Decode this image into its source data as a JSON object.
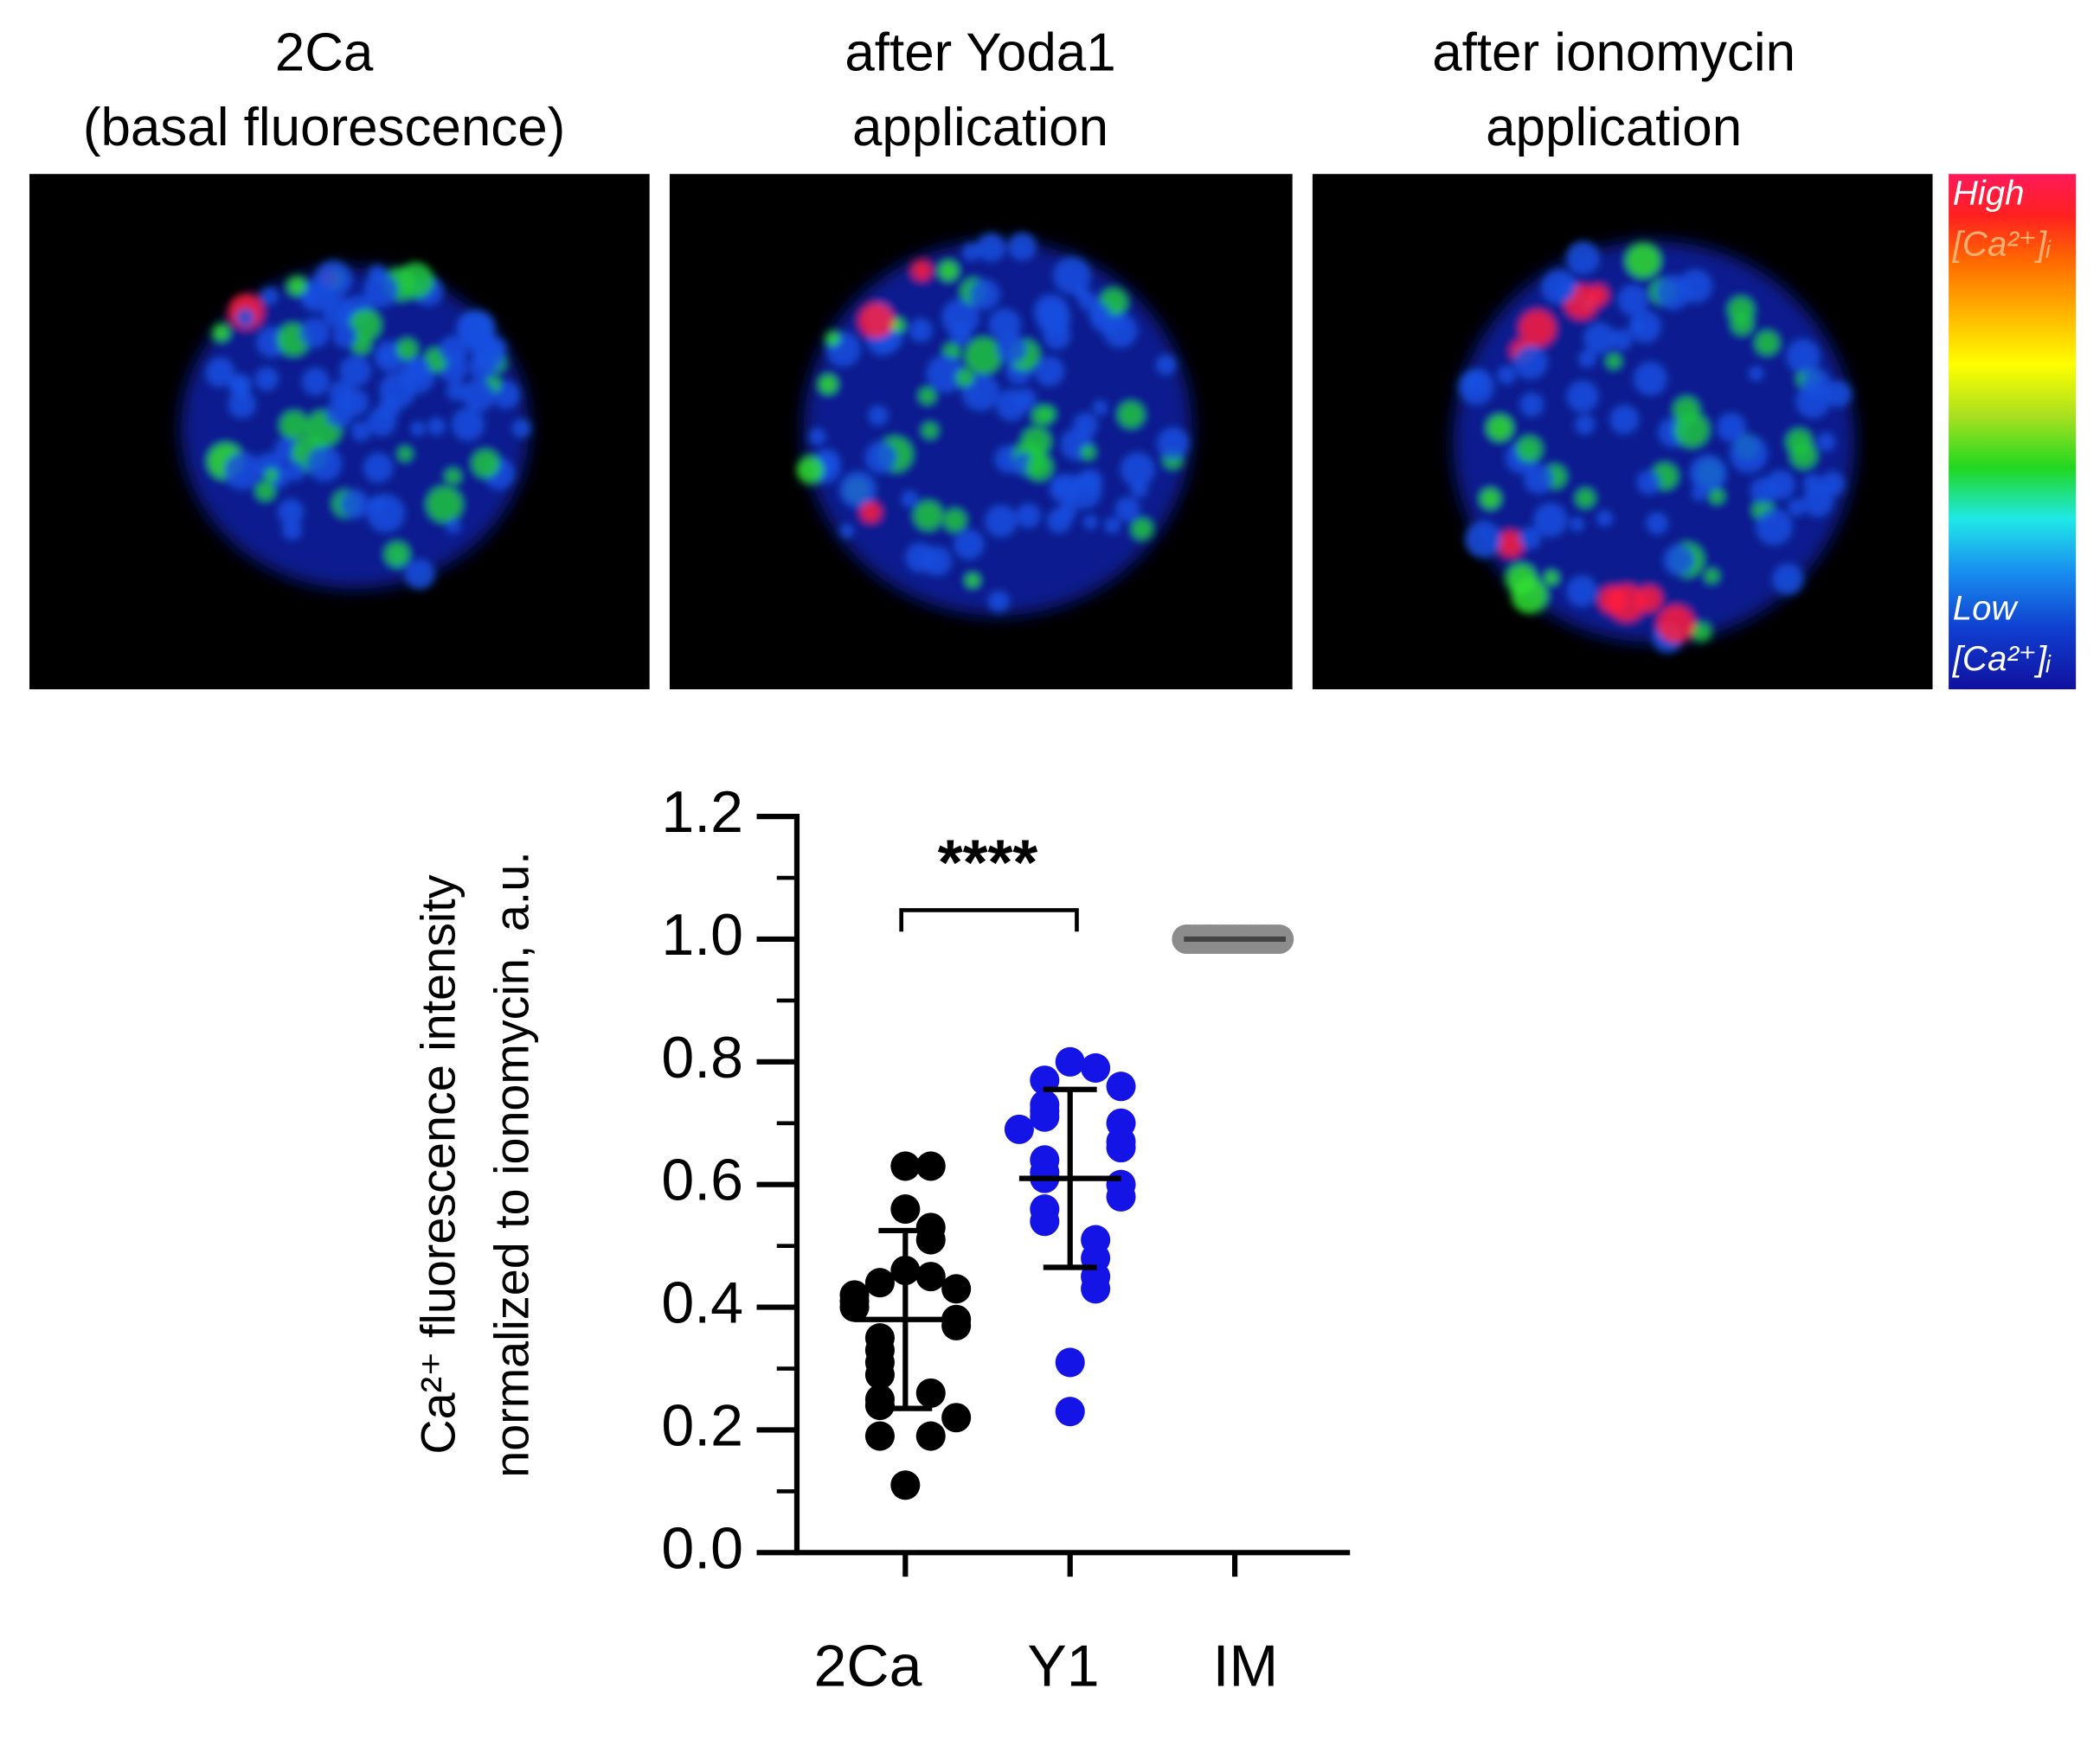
{
  "panels": [
    {
      "title": [
        "2Ca",
        "(basal fluorescence)"
      ]
    },
    {
      "title": [
        "after Yoda1",
        "application"
      ]
    },
    {
      "title": [
        "after ionomycin",
        "application"
      ]
    }
  ],
  "colorbar": {
    "high": "High",
    "high_unit": "[Ca²⁺]ᵢ",
    "low": "Low",
    "low_unit": "[Ca²⁺]ᵢ"
  },
  "chart_data": {
    "type": "strip",
    "ylabel": [
      "Ca²⁺ fluorescence intensity",
      "normalized to ionomycin, a.u."
    ],
    "categories": [
      "2Ca",
      "Y1",
      "IM"
    ],
    "series": [
      {
        "color": "#000000",
        "mean": 0.38,
        "sd": 0.145,
        "values": [
          0.63,
          0.63,
          0.56,
          0.53,
          0.51,
          0.46,
          0.45,
          0.44,
          0.43,
          0.42,
          0.41,
          0.4,
          0.38,
          0.37,
          0.35,
          0.33,
          0.31,
          0.29,
          0.26,
          0.25,
          0.24,
          0.22,
          0.19,
          0.19,
          0.11
        ]
      },
      {
        "color": "#1414e6",
        "mean": 0.61,
        "sd": 0.145,
        "values": [
          0.8,
          0.79,
          0.77,
          0.76,
          0.73,
          0.72,
          0.71,
          0.7,
          0.69,
          0.67,
          0.66,
          0.64,
          0.62,
          0.61,
          0.6,
          0.58,
          0.56,
          0.54,
          0.51,
          0.48,
          0.45,
          0.43,
          0.31,
          0.23
        ]
      },
      {
        "color": "#8c8c8c",
        "mean": 1.0,
        "sd": 0,
        "values": [
          1.0,
          1.0,
          1.0,
          1.0,
          1.0,
          1.0,
          1.0,
          1.0,
          1.0,
          1.0,
          1.0,
          1.0,
          1.0,
          1.0,
          1.0,
          1.0,
          1.0,
          1.0,
          1.0,
          1.0,
          1.0,
          1.0,
          1.0,
          1.0
        ]
      }
    ],
    "significance": "****",
    "ylim": [
      0,
      1.2
    ],
    "yticks": [
      {
        "value": 0,
        "label": "0.0"
      },
      0.2,
      0.4,
      0.6,
      0.8,
      {
        "value": 1,
        "label": "1.0"
      },
      1.2
    ],
    "yminorticks": [
      0.1,
      0.3,
      0.5,
      0.7,
      0.9,
      1.1
    ]
  }
}
